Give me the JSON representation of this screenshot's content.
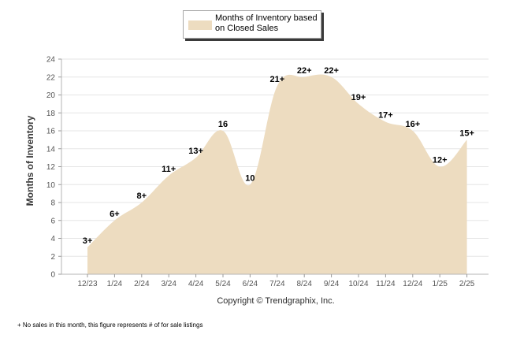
{
  "chart_data": {
    "type": "area",
    "categories": [
      "12/23",
      "1/24",
      "2/24",
      "3/24",
      "4/24",
      "5/24",
      "6/24",
      "7/24",
      "8/24",
      "9/24",
      "10/24",
      "11/24",
      "12/24",
      "1/25",
      "2/25"
    ],
    "values": [
      3,
      6,
      8,
      11,
      13,
      16,
      10,
      21,
      22,
      22,
      19,
      17,
      16,
      12,
      15
    ],
    "data_labels": [
      "3+",
      "6+",
      "8+",
      "11+",
      "13+",
      "16",
      "10",
      "21+",
      "22+",
      "22+",
      "19+",
      "17+",
      "16+",
      "12+",
      "15+"
    ],
    "series": [
      {
        "name": "Months of Inventory based on Closed Sales",
        "values": [
          3,
          6,
          8,
          11,
          13,
          16,
          10,
          21,
          22,
          22,
          19,
          17,
          16,
          12,
          15
        ]
      }
    ],
    "ylabel": "Months of Inventory",
    "ylim": [
      0,
      24
    ],
    "yticks": [
      0,
      2,
      4,
      6,
      8,
      10,
      12,
      14,
      16,
      18,
      20,
      22,
      24
    ],
    "grid": true,
    "legend_position": "top-center",
    "fill_color": "#eddcc0"
  },
  "legend": {
    "label": "Months of Inventory based on Closed Sales"
  },
  "footer": {
    "copyright": "Copyright © Trendgraphix, Inc.",
    "footnote": "+ No sales in this month, this figure represents # of for sale listings"
  }
}
